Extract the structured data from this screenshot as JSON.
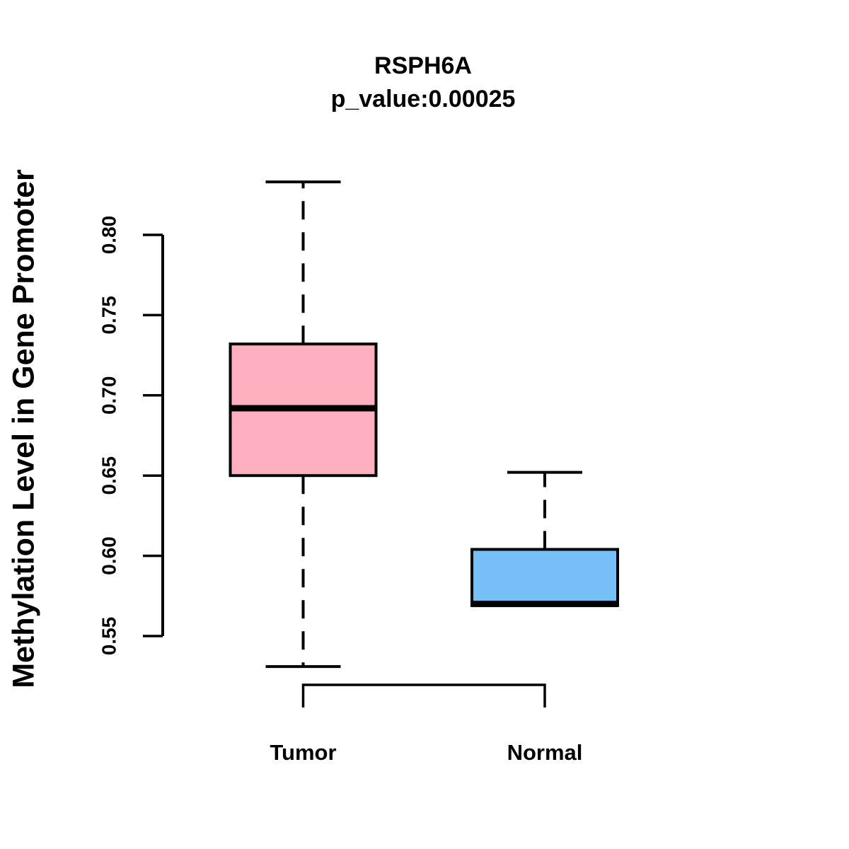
{
  "title": {
    "line1": "RSPH6A",
    "line2": "p_value:0.00025"
  },
  "axes": {
    "y_label": "Methylation Level in Gene Promoter"
  },
  "chart_data": {
    "type": "box",
    "title": "RSPH6A",
    "subtitle": "p_value:0.00025",
    "xlabel": "",
    "ylabel": "Methylation Level in Gene Promoter",
    "categories": [
      "Tumor",
      "Normal"
    ],
    "yticks": [
      0.55,
      0.6,
      0.65,
      0.7,
      0.75,
      0.8
    ],
    "ytick_labels": [
      "0.55",
      "0.60",
      "0.65",
      "0.70",
      "0.75",
      "0.80"
    ],
    "ylim": [
      0.52,
      0.84
    ],
    "grid": false,
    "legend": "none",
    "series": [
      {
        "name": "Tumor",
        "fill": "#FFB0C0",
        "whisker_low": 0.531,
        "q1": 0.65,
        "median": 0.692,
        "q3": 0.732,
        "whisker_high": 0.833
      },
      {
        "name": "Normal",
        "fill": "#76BFF7",
        "whisker_low": 0.569,
        "q1": 0.569,
        "median": 0.57,
        "q3": 0.604,
        "whisker_high": 0.652
      }
    ]
  },
  "colors": {
    "tumor_fill": "#FFB0C0",
    "normal_fill": "#76BFF7",
    "line": "#000000",
    "background": "#FFFFFF"
  }
}
